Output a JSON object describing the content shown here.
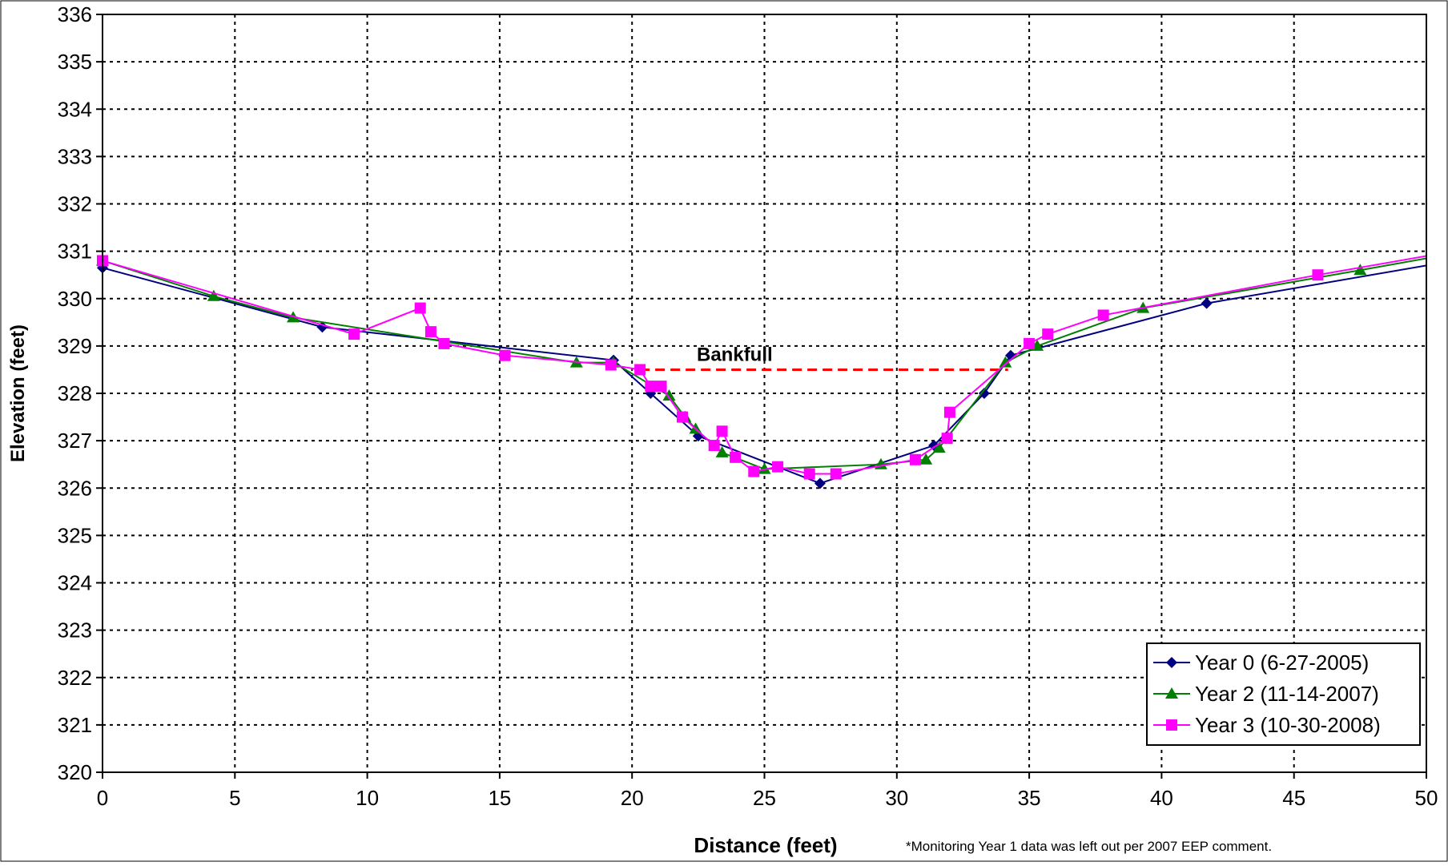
{
  "chart_data": {
    "type": "line",
    "xlabel": "Distance (feet)",
    "ylabel": "Elevation (feet)",
    "xlim": [
      0,
      50
    ],
    "ylim": [
      320,
      336
    ],
    "xticks": [
      0,
      5,
      10,
      15,
      20,
      25,
      30,
      35,
      40,
      45,
      50
    ],
    "yticks": [
      320,
      321,
      322,
      323,
      324,
      325,
      326,
      327,
      328,
      329,
      330,
      331,
      332,
      333,
      334,
      335,
      336
    ],
    "grid": true,
    "legend_position": "bottom-right",
    "footnote": "*Monitoring Year 1 data was left out per 2007 EEP comment.",
    "bankfull": {
      "label": "Bankfull",
      "x": [
        20.3,
        34.2
      ],
      "y": 328.5,
      "color": "#ff0000"
    },
    "series": [
      {
        "name": "Year 0 (6-27-2005)",
        "color": "#000080",
        "marker": "diamond",
        "x": [
          0,
          8.3,
          19.3,
          20.7,
          22.5,
          27.1,
          31.4,
          33.3,
          34.3,
          41.7,
          50
        ],
        "y": [
          330.65,
          329.4,
          328.7,
          328.0,
          327.1,
          326.1,
          326.9,
          328.0,
          328.8,
          329.9,
          330.7
        ]
      },
      {
        "name": "Year 2 (11-14-2007)",
        "color": "#008000",
        "marker": "triangle",
        "x": [
          0,
          4.2,
          7.2,
          17.9,
          19.3,
          21.4,
          22.0,
          22.4,
          23.4,
          25.0,
          29.4,
          31.1,
          31.6,
          34.1,
          35.3,
          39.3,
          47.5,
          50
        ],
        "y": [
          330.8,
          330.05,
          329.6,
          328.65,
          328.65,
          327.95,
          327.5,
          327.25,
          326.75,
          326.4,
          326.5,
          326.6,
          326.85,
          328.65,
          329.0,
          329.8,
          330.6,
          330.85
        ]
      },
      {
        "name": "Year 3 (10-30-2008)",
        "color": "#ff00ff",
        "marker": "square",
        "x": [
          0,
          9.5,
          12.0,
          12.4,
          12.9,
          15.2,
          19.2,
          20.3,
          20.7,
          21.1,
          21.9,
          23.1,
          23.4,
          23.9,
          24.6,
          25.5,
          26.7,
          27.7,
          30.7,
          31.9,
          32.0,
          35.0,
          35.7,
          37.8,
          45.9,
          50
        ],
        "y": [
          330.8,
          329.25,
          329.8,
          329.3,
          329.05,
          328.8,
          328.6,
          328.5,
          328.15,
          328.15,
          327.5,
          326.9,
          327.2,
          326.65,
          326.35,
          326.45,
          326.3,
          326.3,
          326.6,
          327.05,
          327.6,
          329.05,
          329.25,
          329.65,
          330.5,
          330.9
        ]
      }
    ]
  }
}
